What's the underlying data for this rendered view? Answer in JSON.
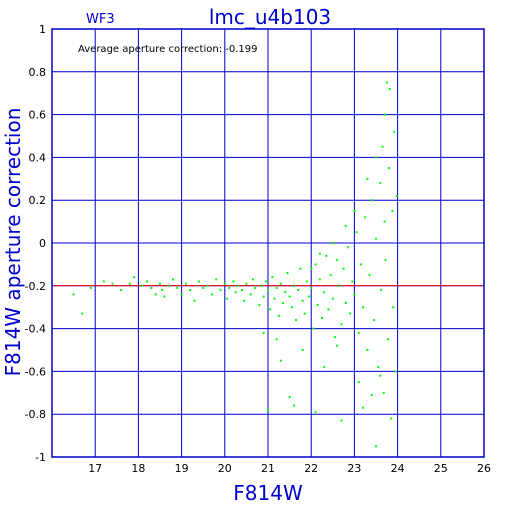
{
  "chart_data": {
    "type": "scatter",
    "title": "lmc_u4b103",
    "panel_label": "WF3",
    "xlabel": "F814W",
    "ylabel": "F814W aperture correction",
    "annotation": "Average aperture correction: -0.199",
    "xlim": [
      16,
      26
    ],
    "ylim": [
      -1,
      1
    ],
    "x_ticks": [
      17,
      18,
      19,
      20,
      21,
      22,
      23,
      24,
      25,
      26
    ],
    "y_ticks": [
      -1,
      -0.8,
      -0.6,
      -0.4,
      -0.2,
      0,
      0.2,
      0.4,
      0.6,
      0.8,
      1
    ],
    "x_tick_labels": [
      "17",
      "18",
      "19",
      "20",
      "21",
      "22",
      "23",
      "24",
      "25",
      "26"
    ],
    "y_tick_labels": [
      "-1",
      "-0.8",
      "-0.6",
      "-0.4",
      "-0.2",
      "0",
      "0.2",
      "0.4",
      "0.6",
      "0.8",
      "1"
    ],
    "grid": true,
    "reference_line": {
      "y": -0.199,
      "color": "#ff0000"
    },
    "colors": {
      "points": "#00ff00",
      "frame": "#0000cc",
      "title": "#0000cc",
      "ticks": "#000000"
    },
    "series": [
      {
        "points": [
          [
            16.5,
            -0.24
          ],
          [
            16.7,
            -0.33
          ],
          [
            16.9,
            -0.21
          ],
          [
            17.2,
            -0.18
          ],
          [
            17.4,
            -0.19
          ],
          [
            17.6,
            -0.22
          ],
          [
            17.8,
            -0.19
          ],
          [
            17.9,
            -0.16
          ],
          [
            18.1,
            -0.2
          ],
          [
            18.2,
            -0.18
          ],
          [
            18.3,
            -0.21
          ],
          [
            18.4,
            -0.24
          ],
          [
            18.5,
            -0.19
          ],
          [
            18.55,
            -0.22
          ],
          [
            18.6,
            -0.25
          ],
          [
            18.7,
            -0.2
          ],
          [
            18.8,
            -0.17
          ],
          [
            18.9,
            -0.21
          ],
          [
            19.0,
            -0.24
          ],
          [
            19.1,
            -0.19
          ],
          [
            19.2,
            -0.22
          ],
          [
            19.3,
            -0.27
          ],
          [
            19.4,
            -0.18
          ],
          [
            19.5,
            -0.21
          ],
          [
            19.6,
            -0.2
          ],
          [
            19.7,
            -0.24
          ],
          [
            19.8,
            -0.17
          ],
          [
            19.9,
            -0.22
          ],
          [
            20.0,
            -0.19
          ],
          [
            20.05,
            -0.26
          ],
          [
            20.1,
            -0.21
          ],
          [
            20.2,
            -0.18
          ],
          [
            20.25,
            -0.23
          ],
          [
            20.3,
            -0.2
          ],
          [
            20.4,
            -0.22
          ],
          [
            20.45,
            -0.27
          ],
          [
            20.5,
            -0.19
          ],
          [
            20.6,
            -0.24
          ],
          [
            20.65,
            -0.17
          ],
          [
            20.7,
            -0.21
          ],
          [
            20.8,
            -0.29
          ],
          [
            20.85,
            -0.2
          ],
          [
            20.9,
            -0.25
          ],
          [
            20.95,
            -0.18
          ],
          [
            21.0,
            -0.22
          ],
          [
            21.05,
            -0.31
          ],
          [
            21.1,
            -0.16
          ],
          [
            21.15,
            -0.26
          ],
          [
            21.2,
            -0.21
          ],
          [
            21.25,
            -0.34
          ],
          [
            21.3,
            -0.19
          ],
          [
            21.35,
            -0.28
          ],
          [
            21.4,
            -0.23
          ],
          [
            21.45,
            -0.14
          ],
          [
            21.5,
            -0.25
          ],
          [
            21.55,
            -0.3
          ],
          [
            21.6,
            -0.2
          ],
          [
            21.65,
            -0.36
          ],
          [
            21.7,
            -0.22
          ],
          [
            21.75,
            -0.12
          ],
          [
            21.8,
            -0.27
          ],
          [
            21.85,
            -0.33
          ],
          [
            21.9,
            -0.18
          ],
          [
            21.95,
            -0.25
          ],
          [
            22.0,
            -0.21
          ],
          [
            22.05,
            -0.4
          ],
          [
            22.1,
            -0.1
          ],
          [
            22.15,
            -0.29
          ],
          [
            22.2,
            -0.17
          ],
          [
            22.25,
            -0.35
          ],
          [
            22.3,
            -0.23
          ],
          [
            22.35,
            -0.06
          ],
          [
            22.4,
            -0.31
          ],
          [
            22.45,
            -0.15
          ],
          [
            22.5,
            -0.26
          ],
          [
            22.55,
            -0.44
          ],
          [
            22.6,
            -0.08
          ],
          [
            22.65,
            -0.2
          ],
          [
            22.7,
            -0.38
          ],
          [
            22.75,
            -0.12
          ],
          [
            22.8,
            -0.28
          ],
          [
            22.85,
            -0.02
          ],
          [
            22.9,
            -0.33
          ],
          [
            22.95,
            -0.18
          ],
          [
            23.0,
            -0.24
          ],
          [
            23.05,
            0.05
          ],
          [
            23.1,
            -0.42
          ],
          [
            23.15,
            -0.1
          ],
          [
            23.2,
            -0.3
          ],
          [
            23.25,
            0.12
          ],
          [
            23.3,
            -0.5
          ],
          [
            23.35,
            -0.15
          ],
          [
            23.4,
            0.2
          ],
          [
            23.45,
            -0.36
          ],
          [
            23.5,
            0.02
          ],
          [
            23.55,
            -0.58
          ],
          [
            23.6,
            0.28
          ],
          [
            23.62,
            -0.22
          ],
          [
            23.65,
            0.45
          ],
          [
            23.68,
            -0.7
          ],
          [
            23.7,
            0.6
          ],
          [
            23.72,
            -0.08
          ],
          [
            23.75,
            0.75
          ],
          [
            23.78,
            -0.45
          ],
          [
            23.8,
            0.35
          ],
          [
            23.82,
            0.72
          ],
          [
            23.85,
            -0.82
          ],
          [
            23.88,
            0.15
          ],
          [
            23.9,
            -0.3
          ],
          [
            23.92,
            0.52
          ],
          [
            23.95,
            -0.6
          ],
          [
            23.98,
            0.22
          ],
          [
            21.0,
            -0.78
          ],
          [
            21.5,
            -0.72
          ],
          [
            21.6,
            -0.76
          ],
          [
            22.1,
            -0.79
          ],
          [
            22.7,
            -0.83
          ],
          [
            23.5,
            -0.95
          ],
          [
            23.2,
            -0.77
          ],
          [
            21.3,
            -0.55
          ],
          [
            21.8,
            -0.5
          ],
          [
            22.3,
            -0.58
          ],
          [
            22.6,
            -0.48
          ],
          [
            23.1,
            -0.65
          ],
          [
            23.4,
            -0.71
          ],
          [
            23.6,
            -0.62
          ],
          [
            21.2,
            -0.45
          ],
          [
            20.9,
            -0.42
          ],
          [
            22.0,
            -0.12
          ],
          [
            22.2,
            -0.05
          ],
          [
            22.5,
            0.0
          ],
          [
            22.8,
            0.08
          ],
          [
            23.0,
            0.15
          ],
          [
            23.3,
            0.3
          ],
          [
            23.5,
            0.4
          ],
          [
            23.7,
            0.1
          ]
        ]
      }
    ]
  }
}
